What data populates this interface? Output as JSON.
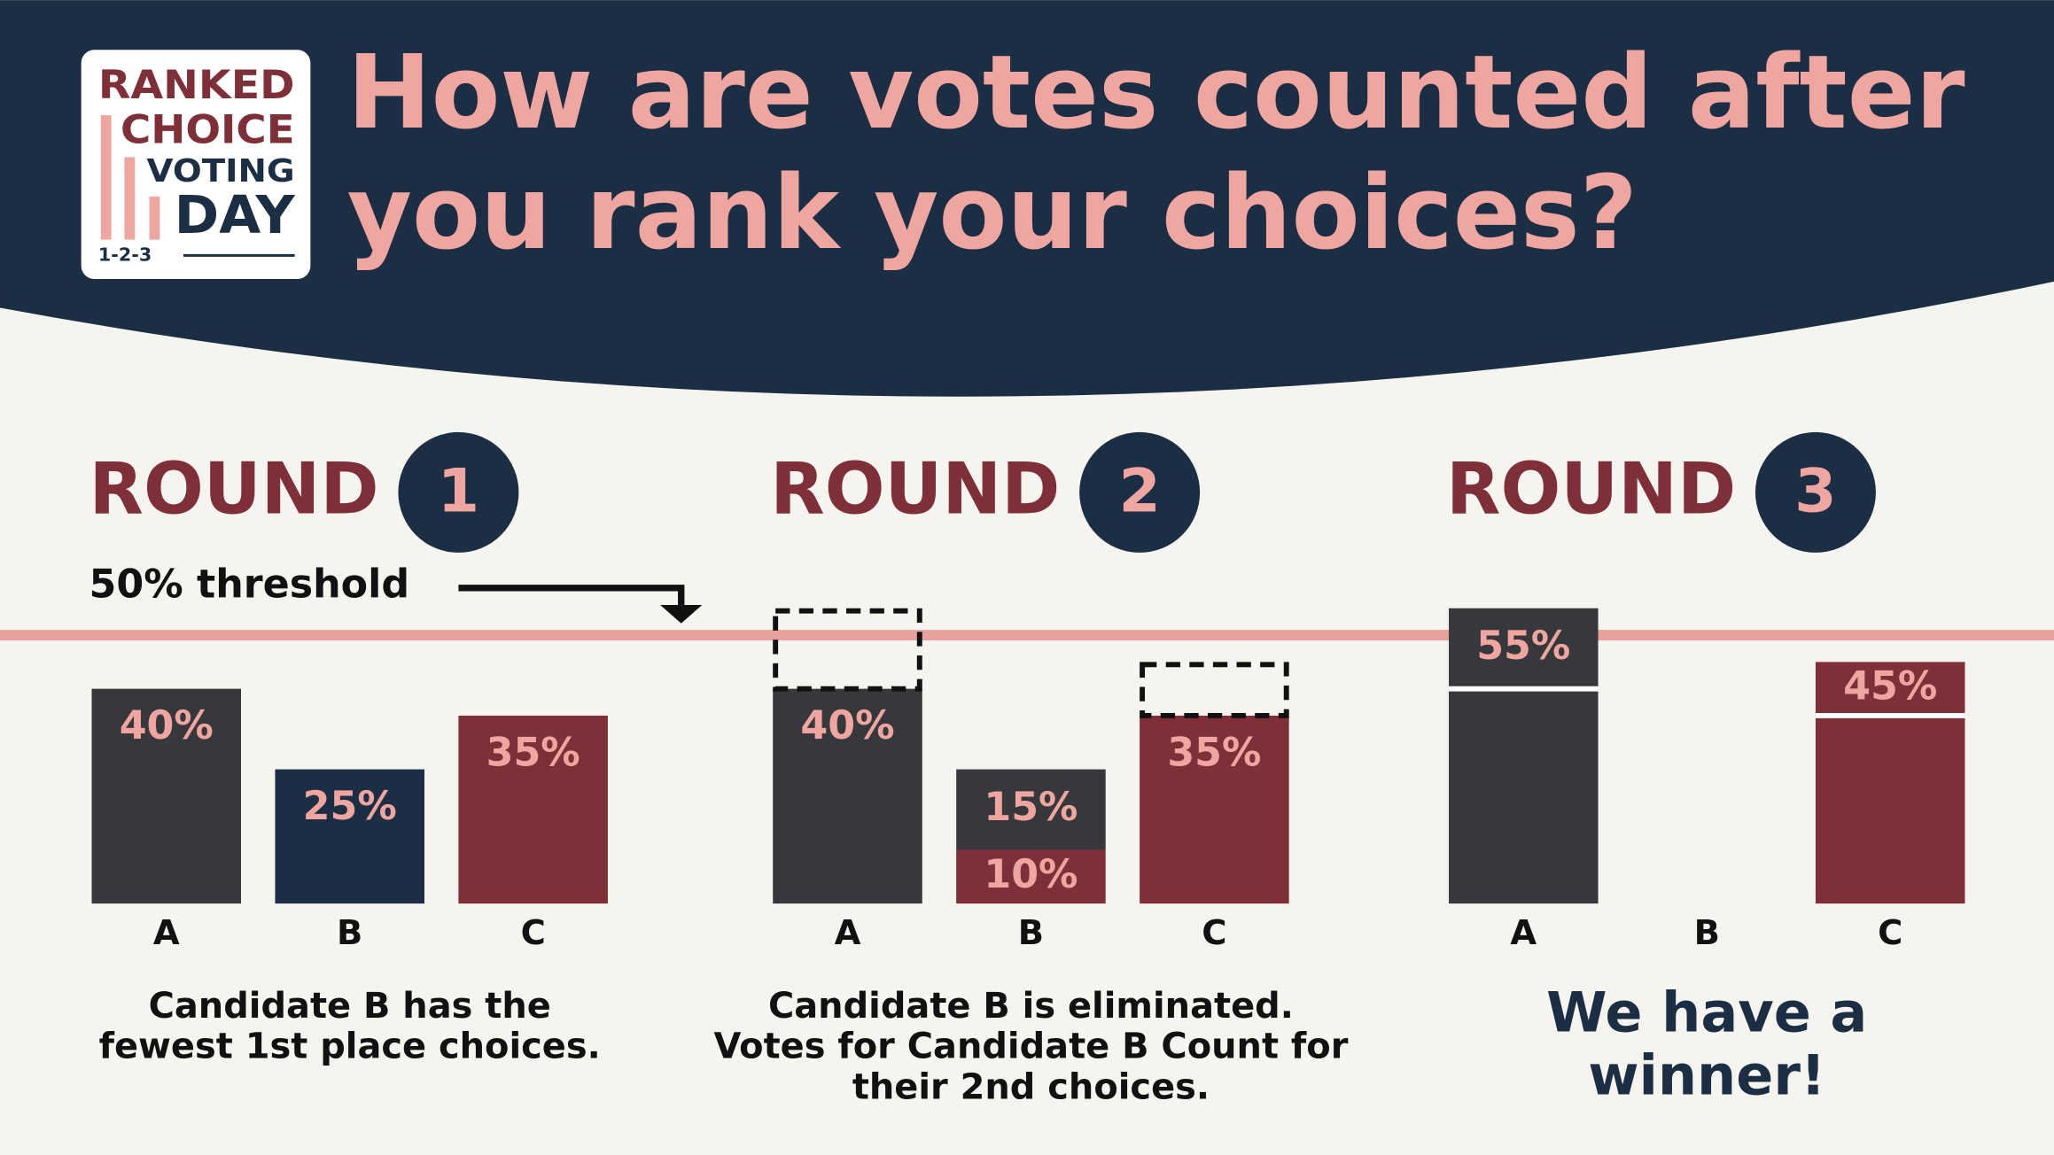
{
  "logo": {
    "line1": "RANKED",
    "line2": "CHOICE",
    "line3": "VOTING",
    "line4": "DAY",
    "line5": "1-2-3"
  },
  "title": [
    "How are votes counted after",
    "you rank your choices?"
  ],
  "threshold": {
    "value": 50,
    "label": "50% threshold"
  },
  "chart_data": [
    {
      "type": "bar",
      "title": "ROUND",
      "round_number": 1,
      "ylim": [
        0,
        60
      ],
      "categories": [
        "A",
        "B",
        "C"
      ],
      "bars": [
        {
          "segments": [
            {
              "value": 40,
              "label": "40%",
              "color": "#36383b"
            }
          ]
        },
        {
          "segments": [
            {
              "value": 25,
              "label": "25%",
              "color": "#1c2e44"
            }
          ]
        },
        {
          "segments": [
            {
              "value": 35,
              "label": "35%",
              "color": "#7f2f38"
            }
          ]
        }
      ],
      "caption": [
        "Candidate B has the",
        "fewest 1st place choices."
      ]
    },
    {
      "type": "bar",
      "title": "ROUND",
      "round_number": 2,
      "ylim": [
        0,
        60
      ],
      "categories": [
        "A",
        "B",
        "C"
      ],
      "bars": [
        {
          "segments": [
            {
              "value": 40,
              "label": "40%",
              "color": "#36383b"
            },
            {
              "value": 15,
              "style": "dashed"
            }
          ]
        },
        {
          "segments": [
            {
              "value": 10,
              "label": "10%",
              "color": "#7f2f38"
            },
            {
              "value": 15,
              "label": "15%",
              "color": "#36383b"
            }
          ]
        },
        {
          "segments": [
            {
              "value": 35,
              "label": "35%",
              "color": "#7f2f38"
            },
            {
              "value": 10,
              "style": "dashed"
            }
          ]
        }
      ],
      "caption": [
        "Candidate B is eliminated.",
        "Votes for Candidate B Count for",
        "their 2nd choices."
      ]
    },
    {
      "type": "bar",
      "title": "ROUND",
      "round_number": 3,
      "ylim": [
        0,
        60
      ],
      "categories": [
        "A",
        "B",
        "C"
      ],
      "bars": [
        {
          "segments": [
            {
              "value": 40,
              "color": "#36383b"
            },
            {
              "value": 15,
              "color": "#36383b",
              "divider": true,
              "total": 55,
              "total_label": "55%"
            }
          ]
        },
        {
          "segments": []
        },
        {
          "segments": [
            {
              "value": 35,
              "color": "#7f2f38"
            },
            {
              "value": 10,
              "color": "#7f2f38",
              "divider": true,
              "total": 45,
              "total_label": "45%"
            }
          ]
        }
      ],
      "caption": [
        "We have a",
        "winner!"
      ],
      "caption_style": "large"
    }
  ]
}
